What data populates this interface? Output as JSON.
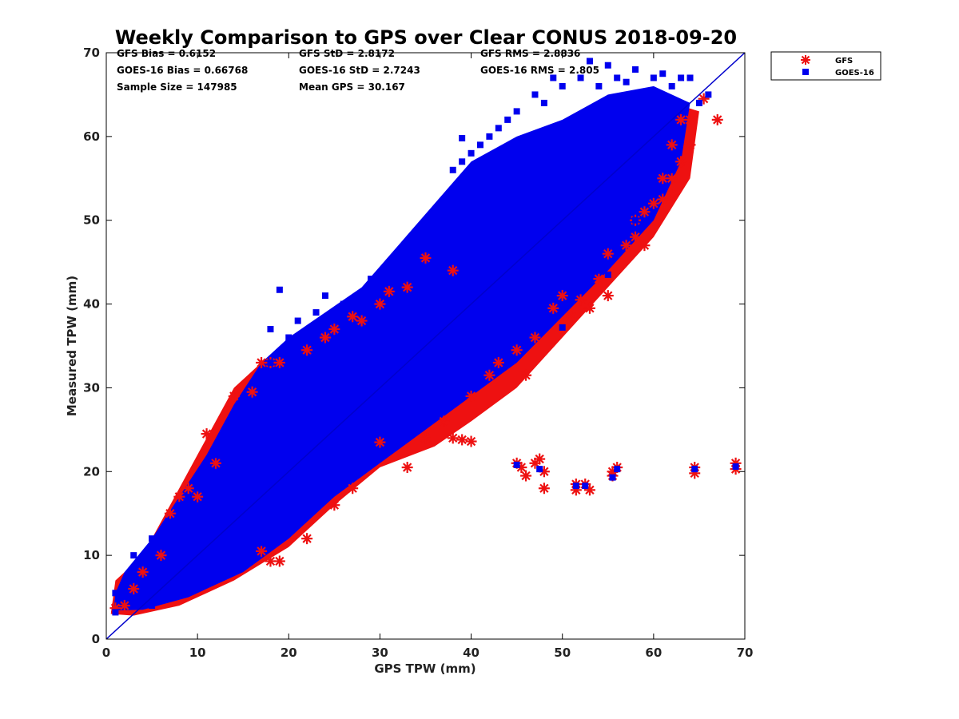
{
  "chart_data": {
    "type": "scatter",
    "title": "Weekly Comparison to GPS over Clear CONUS 2018-09-20",
    "xlabel": "GPS TPW (mm)",
    "ylabel": "Measured TPW (mm)",
    "xlim": [
      0,
      70
    ],
    "ylim": [
      0,
      70
    ],
    "xticks": [
      "0",
      "10",
      "20",
      "30",
      "40",
      "50",
      "60",
      "70"
    ],
    "yticks": [
      "0",
      "10",
      "20",
      "30",
      "40",
      "50",
      "60",
      "70"
    ],
    "grid": false,
    "legend_position": "outside top-right",
    "stats": [
      "GFS Bias = 0.6152",
      "GOES-16 Bias = 0.66768",
      "Sample Size = 147985",
      "GFS StD = 2.8172",
      "GOES-16 StD = 2.7243",
      "Mean GPS = 30.167",
      "GFS RMS = 2.8836",
      "GOES-16 RMS = 2.805"
    ],
    "reference_line": {
      "x": [
        0,
        70
      ],
      "y": [
        0,
        70
      ],
      "color": "#0000cc"
    },
    "series": [
      {
        "name": "GFS",
        "marker": "asterisk",
        "color": "#ee1111",
        "points": [
          [
            1,
            3.7
          ],
          [
            2,
            4
          ],
          [
            3,
            6
          ],
          [
            4,
            8
          ],
          [
            6,
            10
          ],
          [
            7,
            15
          ],
          [
            8,
            17
          ],
          [
            9,
            18
          ],
          [
            10,
            17
          ],
          [
            11,
            24.5
          ],
          [
            12,
            21
          ],
          [
            14,
            29
          ],
          [
            16,
            29.5
          ],
          [
            17,
            33
          ],
          [
            18,
            33
          ],
          [
            19,
            33
          ],
          [
            22,
            34.5
          ],
          [
            24,
            36
          ],
          [
            25,
            37
          ],
          [
            27,
            38.5
          ],
          [
            28,
            38
          ],
          [
            30,
            40
          ],
          [
            31,
            41.5
          ],
          [
            33,
            42
          ],
          [
            35,
            45.5
          ],
          [
            38,
            44
          ],
          [
            18,
            9.3
          ],
          [
            19,
            9.3
          ],
          [
            17,
            10.5
          ],
          [
            22,
            12
          ],
          [
            25,
            16
          ],
          [
            27,
            18
          ],
          [
            30,
            23.5
          ],
          [
            33,
            20.5
          ],
          [
            35,
            24
          ],
          [
            38,
            24
          ],
          [
            39,
            23.8
          ],
          [
            40,
            23.6
          ],
          [
            37,
            26
          ],
          [
            40,
            29
          ],
          [
            42,
            31.5
          ],
          [
            43,
            33
          ],
          [
            45,
            34.5
          ],
          [
            46,
            31.5
          ],
          [
            47,
            36
          ],
          [
            49,
            39.5
          ],
          [
            50,
            41
          ],
          [
            51,
            38.5
          ],
          [
            52,
            40.5
          ],
          [
            53,
            39.5
          ],
          [
            54,
            43
          ],
          [
            55,
            41
          ],
          [
            55,
            46
          ],
          [
            57,
            47
          ],
          [
            58,
            48
          ],
          [
            59,
            47
          ],
          [
            45,
            21
          ],
          [
            45.5,
            20.5
          ],
          [
            46,
            19.5
          ],
          [
            47,
            21
          ],
          [
            47.5,
            21.5
          ],
          [
            48,
            20
          ],
          [
            48,
            18
          ],
          [
            51.5,
            18.5
          ],
          [
            51.5,
            17.8
          ],
          [
            52.5,
            18.5
          ],
          [
            53,
            17.8
          ],
          [
            55.5,
            20
          ],
          [
            56,
            20.5
          ],
          [
            55.5,
            19.5
          ],
          [
            64.5,
            20.5
          ],
          [
            64.5,
            19.8
          ],
          [
            69,
            21
          ],
          [
            69,
            20.3
          ],
          [
            58,
            50
          ],
          [
            59,
            51
          ],
          [
            60,
            52
          ],
          [
            61,
            52.5
          ],
          [
            61,
            55
          ],
          [
            62,
            53
          ],
          [
            62,
            55
          ],
          [
            63,
            57
          ],
          [
            62,
            59
          ],
          [
            64,
            59
          ],
          [
            63,
            62
          ],
          [
            64,
            62
          ],
          [
            65.5,
            64.5
          ],
          [
            67,
            62
          ]
        ]
      },
      {
        "name": "GOES-16",
        "marker": "square",
        "color": "#0000ee",
        "points": [
          [
            1,
            3.2
          ],
          [
            1,
            5.5
          ],
          [
            2,
            6.5
          ],
          [
            3,
            8.5
          ],
          [
            3,
            10
          ],
          [
            5,
            12
          ],
          [
            7,
            14
          ],
          [
            8,
            16
          ],
          [
            10,
            18
          ],
          [
            12,
            22
          ],
          [
            14,
            25
          ],
          [
            16,
            27
          ],
          [
            17,
            30
          ],
          [
            18,
            33
          ],
          [
            19,
            41.7
          ],
          [
            18,
            37
          ],
          [
            20,
            36
          ],
          [
            21,
            38
          ],
          [
            23,
            39
          ],
          [
            24,
            41
          ],
          [
            26,
            40
          ],
          [
            28,
            41
          ],
          [
            29,
            43
          ],
          [
            32,
            44
          ],
          [
            34,
            47.5
          ],
          [
            36,
            50
          ],
          [
            37,
            50.5
          ],
          [
            38,
            52
          ],
          [
            39,
            53
          ],
          [
            40,
            54
          ],
          [
            41,
            55
          ],
          [
            38,
            56
          ],
          [
            39,
            57
          ],
          [
            40,
            58
          ],
          [
            41,
            59
          ],
          [
            42,
            60
          ],
          [
            43,
            61
          ],
          [
            44,
            62
          ],
          [
            45,
            63
          ],
          [
            47,
            65
          ],
          [
            49,
            67
          ],
          [
            50,
            66
          ],
          [
            52,
            67
          ],
          [
            54,
            66
          ],
          [
            56,
            67
          ],
          [
            58,
            68
          ],
          [
            60,
            67
          ],
          [
            62,
            66
          ],
          [
            64,
            67
          ],
          [
            39,
            59.8
          ],
          [
            48,
            64
          ],
          [
            53,
            69
          ],
          [
            55,
            68.5
          ],
          [
            57,
            66.5
          ],
          [
            61,
            67.5
          ],
          [
            63,
            67
          ],
          [
            46,
            54.5
          ],
          [
            48,
            55.5
          ],
          [
            50,
            57.5
          ],
          [
            52,
            57
          ],
          [
            54,
            58
          ],
          [
            56,
            60
          ],
          [
            58,
            61
          ],
          [
            60,
            63
          ],
          [
            62,
            64
          ],
          [
            65,
            64
          ],
          [
            66,
            65
          ],
          [
            5,
            4
          ],
          [
            7,
            6
          ],
          [
            9,
            6
          ],
          [
            11,
            7.5
          ],
          [
            13,
            8.5
          ],
          [
            15,
            10
          ],
          [
            17,
            11.5
          ],
          [
            19,
            14
          ],
          [
            20,
            16.5
          ],
          [
            22,
            17
          ],
          [
            23,
            19
          ],
          [
            25,
            21
          ],
          [
            27,
            23
          ],
          [
            28,
            22
          ],
          [
            30,
            25
          ],
          [
            32,
            27
          ],
          [
            34,
            27
          ],
          [
            35,
            29
          ],
          [
            37,
            31
          ],
          [
            39,
            33
          ],
          [
            40,
            35
          ],
          [
            42,
            37
          ],
          [
            43,
            38
          ],
          [
            45,
            40
          ],
          [
            47,
            42
          ],
          [
            48,
            38
          ],
          [
            50,
            37.2
          ],
          [
            52,
            42
          ],
          [
            54,
            44
          ],
          [
            55,
            43.5
          ],
          [
            56,
            47
          ],
          [
            58,
            50
          ],
          [
            60,
            54
          ],
          [
            62,
            56
          ],
          [
            45,
            20.8
          ],
          [
            47.5,
            20.3
          ],
          [
            51.5,
            18.3
          ],
          [
            52.5,
            18.3
          ],
          [
            55.5,
            19.3
          ],
          [
            56,
            20.3
          ],
          [
            64.5,
            20.3
          ],
          [
            69,
            20.6
          ]
        ]
      }
    ]
  }
}
